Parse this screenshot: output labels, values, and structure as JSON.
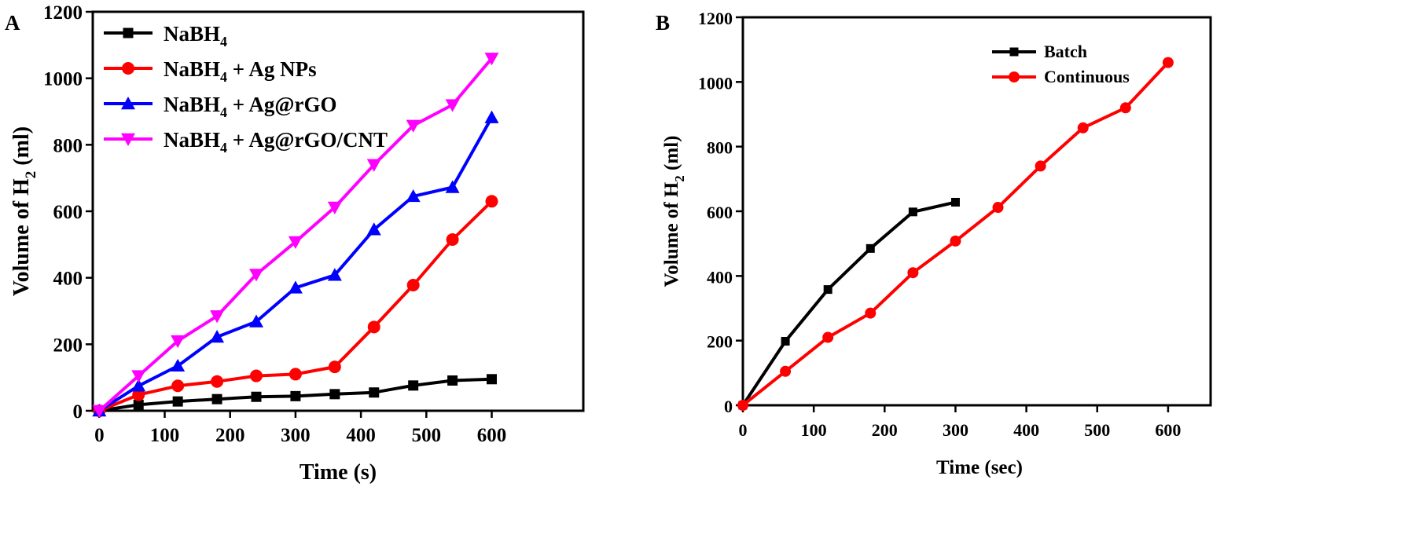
{
  "chart_data": [
    {
      "type": "line",
      "panel_label": "A",
      "xlabel": "Time (s)",
      "ylabel_main": "Volume of H",
      "ylabel_sub": "2",
      "ylabel_tail": " (ml)",
      "xlim": [
        -10,
        740
      ],
      "ylim": [
        0,
        1200
      ],
      "xticks": [
        0,
        100,
        200,
        300,
        400,
        500,
        600
      ],
      "yticks": [
        0,
        200,
        400,
        600,
        800,
        1000,
        1200
      ],
      "legend_position": "top-left",
      "grid": false,
      "x": [
        0,
        60,
        120,
        180,
        240,
        300,
        360,
        420,
        480,
        540,
        600
      ],
      "series": [
        {
          "name_main": "NaBH",
          "name_sub": "4",
          "name_tail": "",
          "color": "#000000",
          "marker": "square",
          "values": [
            0,
            18,
            28,
            35,
            42,
            44,
            50,
            55,
            76,
            91,
            95
          ]
        },
        {
          "name_main": "NaBH",
          "name_sub": "4",
          "name_tail": " + Ag NPs",
          "color": "#ff0000",
          "marker": "circle",
          "values": [
            0,
            48,
            75,
            88,
            105,
            110,
            132,
            252,
            378,
            515,
            630
          ]
        },
        {
          "name_main": "NaBH",
          "name_sub": "4",
          "name_tail": " + Ag@rGO",
          "color": "#0000ff",
          "marker": "triangle-up",
          "values": [
            0,
            75,
            135,
            222,
            268,
            370,
            408,
            545,
            645,
            672,
            882
          ]
        },
        {
          "name_main": "NaBH",
          "name_sub": "4",
          "name_tail": " + Ag@rGO/CNT",
          "color": "#ff00ff",
          "marker": "triangle-down",
          "values": [
            0,
            105,
            210,
            285,
            410,
            508,
            612,
            740,
            858,
            920,
            1060
          ]
        }
      ]
    },
    {
      "type": "line",
      "panel_label": "B",
      "xlabel": "Time (sec)",
      "ylabel_main": "Volume of H",
      "ylabel_sub": "2",
      "ylabel_tail": " (ml)",
      "xlim": [
        0,
        660
      ],
      "ylim": [
        0,
        1200
      ],
      "xticks": [
        0,
        100,
        200,
        300,
        400,
        500,
        600
      ],
      "yticks": [
        0,
        200,
        400,
        600,
        800,
        1000,
        1200
      ],
      "legend_position": "top-right",
      "grid": false,
      "series": [
        {
          "name": "Batch",
          "color": "#000000",
          "marker": "square",
          "x": [
            0,
            60,
            120,
            180,
            240,
            300
          ],
          "values": [
            0,
            198,
            358,
            485,
            598,
            628
          ]
        },
        {
          "name": "Continuous",
          "color": "#ff0000",
          "marker": "circle",
          "x": [
            0,
            60,
            120,
            180,
            240,
            300,
            360,
            420,
            480,
            540,
            600
          ],
          "values": [
            0,
            105,
            210,
            285,
            410,
            508,
            612,
            740,
            858,
            920,
            1060
          ]
        }
      ]
    }
  ],
  "panel_label_color": "#2255cc"
}
